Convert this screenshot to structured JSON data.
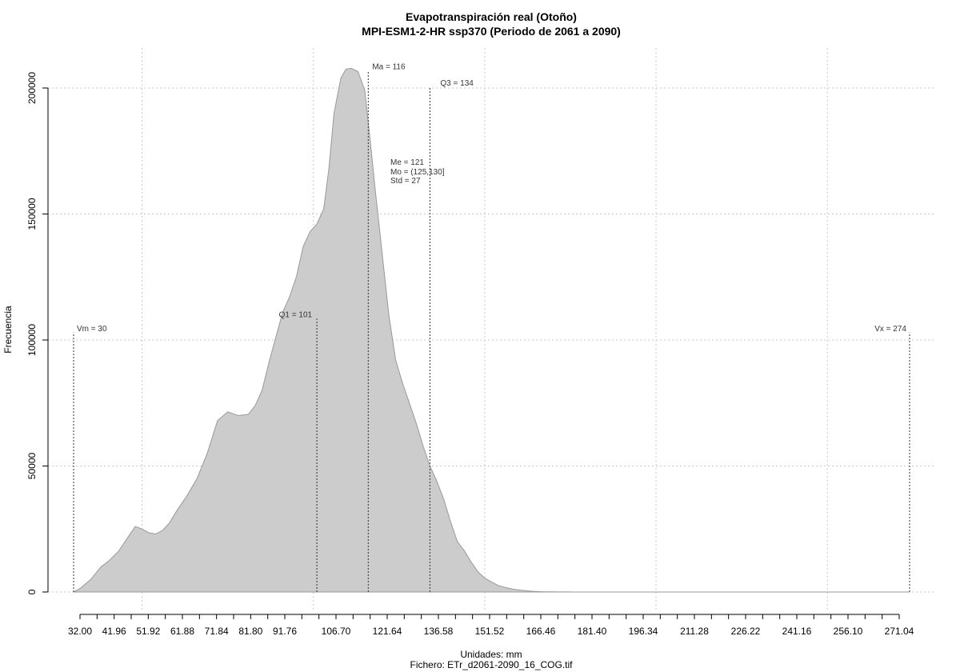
{
  "chart_data": {
    "type": "area",
    "title": "Evapotranspiración real (Otoño)",
    "subtitle": "MPI-ESM1-2-HR ssp370 (Periodo de 2061 a 2090)",
    "xlabel": "Unidades: mm",
    "ylabel": "Frecuencia",
    "footer": "Fichero: ETr_d2061-2090_16_COG.tif",
    "xlim": [
      32,
      274
    ],
    "ylim": [
      0,
      200000
    ],
    "x_ticks": [
      "32.00",
      "41.96",
      "51.92",
      "61.88",
      "71.84",
      "81.80",
      "91.76",
      "106.70",
      "121.64",
      "136.58",
      "151.52",
      "166.46",
      "181.40",
      "196.34",
      "211.28",
      "226.22",
      "241.16",
      "256.10",
      "271.04"
    ],
    "y_ticks": [
      "0",
      "50000",
      "100000",
      "150000",
      "200000"
    ],
    "grid": true,
    "fill_color": "#cccccc",
    "line_color": "#999999",
    "density": {
      "x": [
        30,
        32,
        35,
        38,
        40,
        43,
        46,
        48,
        50,
        52,
        54,
        56,
        58,
        60,
        63,
        66,
        69,
        72,
        75,
        78,
        81,
        83,
        85,
        87,
        89,
        91,
        93,
        95,
        97,
        99,
        101,
        103,
        104.5,
        106,
        108,
        109.5,
        111,
        113,
        115,
        116.5,
        118,
        120,
        122,
        124,
        126,
        128,
        130,
        132,
        134,
        136,
        138,
        140,
        142,
        144,
        146,
        148,
        150,
        152,
        154,
        156,
        158,
        160,
        162,
        164,
        166,
        168,
        170,
        172,
        174,
        176,
        178,
        180,
        182,
        184,
        186,
        188,
        192,
        196,
        200,
        210,
        220,
        240,
        260,
        274
      ],
      "y": [
        0,
        1500,
        5000,
        10000,
        12000,
        16000,
        22000,
        26000,
        25000,
        23500,
        23000,
        24500,
        27500,
        32000,
        38000,
        45000,
        55000,
        68000,
        71500,
        70000,
        70500,
        74000,
        80000,
        91000,
        101000,
        111000,
        117000,
        125000,
        137000,
        143000,
        146000,
        152000,
        168000,
        190000,
        204000,
        207500,
        207800,
        206500,
        199000,
        180000,
        160000,
        135000,
        110000,
        92000,
        83000,
        75000,
        67000,
        58000,
        50000,
        44000,
        37000,
        28000,
        20000,
        16500,
        12000,
        8000,
        5500,
        4000,
        2500,
        1800,
        1200,
        800,
        500,
        300,
        150,
        100,
        50,
        30,
        20,
        15,
        10,
        10,
        5,
        5,
        3,
        2,
        1,
        0,
        0,
        0,
        0,
        0,
        0,
        0
      ]
    },
    "annotations": [
      {
        "label": "Vm = 30",
        "x": 30,
        "line_top": 103000,
        "label_y": 103500,
        "anchor": "start",
        "dx": 4
      },
      {
        "label": "Q1 = 101",
        "x": 101,
        "line_top": 108500,
        "label_y": 109000,
        "anchor": "end",
        "dx": -6
      },
      {
        "label": "Ma = 116",
        "x": 116,
        "line_top": 207000,
        "label_y": 207500,
        "anchor": "start",
        "dx": 5
      },
      {
        "label": "Q3 = 134",
        "x": 134,
        "line_top": 200500,
        "label_y": 201000,
        "anchor": "start",
        "dx": 13
      },
      {
        "label": "Vx = 274",
        "x": 274,
        "line_top": 103000,
        "label_y": 103500,
        "anchor": "end",
        "dx": -4
      }
    ],
    "stats": [
      "Me = 121",
      "Mo = (125,130]",
      "Std = 27"
    ]
  }
}
